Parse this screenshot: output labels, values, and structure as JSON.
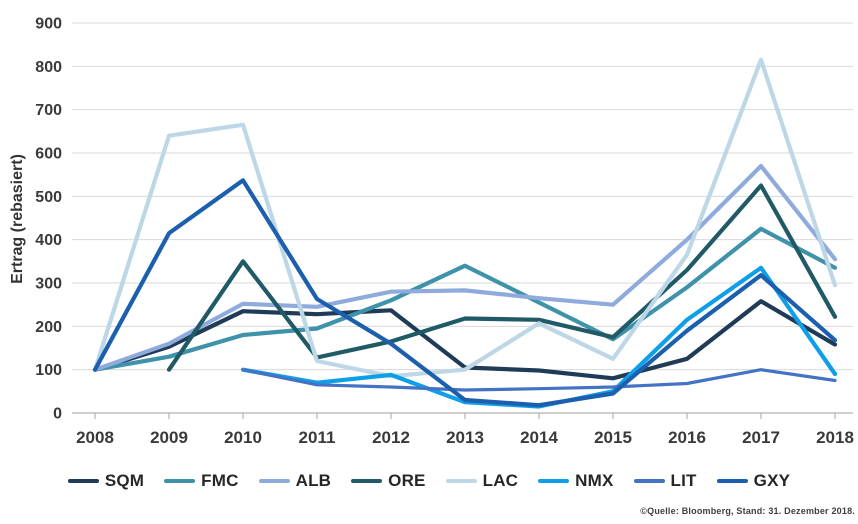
{
  "chart_data": {
    "type": "line",
    "title": "",
    "xlabel": "",
    "ylabel": "Ertrag (rebasiert)",
    "ylim": [
      0,
      900
    ],
    "ytick_step": 100,
    "grid": true,
    "legend_position": "bottom",
    "categories": [
      "2008",
      "2009",
      "2010",
      "2011",
      "2012",
      "2013",
      "2014",
      "2015",
      "2016",
      "2017",
      "2018"
    ],
    "series": [
      {
        "name": "SQM",
        "color": "#1f3b57",
        "values": [
          100,
          153,
          235,
          228,
          237,
          105,
          98,
          80,
          125,
          258,
          158
        ]
      },
      {
        "name": "FMC",
        "color": "#3e92a9",
        "values": [
          100,
          130,
          180,
          195,
          260,
          340,
          255,
          170,
          290,
          425,
          335
        ]
      },
      {
        "name": "ALB",
        "color": "#8faadc",
        "values": [
          100,
          160,
          252,
          245,
          280,
          283,
          265,
          250,
          400,
          570,
          355
        ]
      },
      {
        "name": "ORE",
        "color": "#1f5a66",
        "values": [
          null,
          100,
          350,
          128,
          165,
          218,
          215,
          175,
          330,
          525,
          222
        ]
      },
      {
        "name": "LAC",
        "color": "#bdd7e6",
        "values": [
          100,
          640,
          665,
          120,
          85,
          100,
          207,
          125,
          365,
          815,
          295
        ]
      },
      {
        "name": "NMX",
        "color": "#0f9fe8",
        "values": [
          null,
          null,
          100,
          70,
          88,
          25,
          15,
          50,
          215,
          335,
          90
        ]
      },
      {
        "name": "LIT",
        "color": "#4472c4",
        "values": [
          null,
          null,
          100,
          65,
          60,
          53,
          56,
          60,
          68,
          100,
          75
        ]
      },
      {
        "name": "GXY",
        "color": "#1b5fae",
        "values": [
          100,
          415,
          537,
          263,
          160,
          30,
          18,
          45,
          190,
          318,
          168
        ]
      }
    ],
    "colors": {
      "gridline": "#d9d9d9",
      "axis_line": "#bfbfbf",
      "tick_mark": "#a6a6a6",
      "label_text": "#3a3a3a"
    }
  },
  "footer": {
    "source": "©Quelle: Bloomberg, Stand: 31. Dezember 2018."
  }
}
